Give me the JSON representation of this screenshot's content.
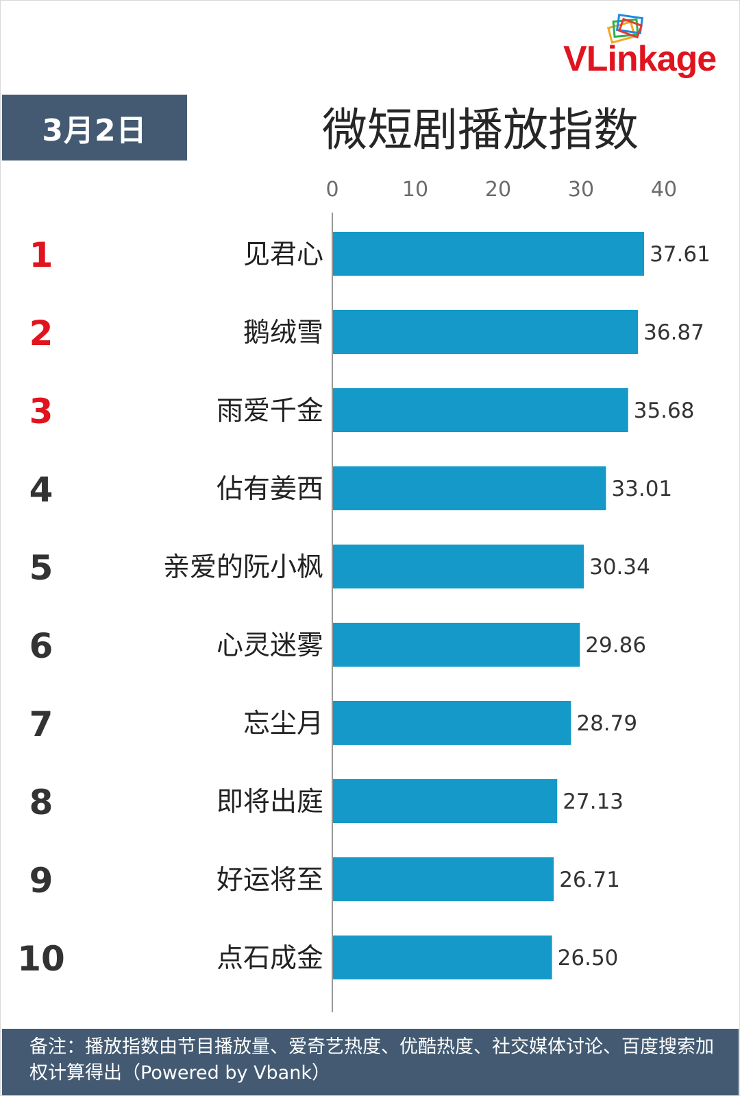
{
  "date_label": "3月2日",
  "title": "微短剧播放指数",
  "logo_text": "VLinkage",
  "footer_note": "备注：播放指数由节目播放量、爱奇艺热度、优酷热度、社交媒体讨论、百度搜索加权计算得出（Powered by Vbank）",
  "colors": {
    "bar": "#1499c8",
    "badge": "#435a72",
    "top_rank": "#e0141e",
    "rank": "#333333"
  },
  "chart_data": {
    "type": "bar",
    "orientation": "horizontal",
    "title": "微短剧播放指数",
    "xlim": [
      0,
      40
    ],
    "x_ticks": [
      0,
      10,
      20,
      30,
      40
    ],
    "ranks": [
      "1",
      "2",
      "3",
      "4",
      "5",
      "6",
      "7",
      "8",
      "9",
      "10"
    ],
    "categories": [
      "见君心",
      "鹅绒雪",
      "雨爱千金",
      "佔有姜西",
      "亲爱的阮小枫",
      "心灵迷雾",
      "忘尘月",
      "即将出庭",
      "好运将至",
      "点石成金"
    ],
    "values": [
      37.61,
      36.87,
      35.68,
      33.01,
      30.34,
      29.86,
      28.79,
      27.13,
      26.71,
      26.5
    ],
    "value_labels": [
      "37.61",
      "36.87",
      "35.68",
      "33.01",
      "30.34",
      "29.86",
      "28.79",
      "27.13",
      "26.71",
      "26.50"
    ]
  }
}
